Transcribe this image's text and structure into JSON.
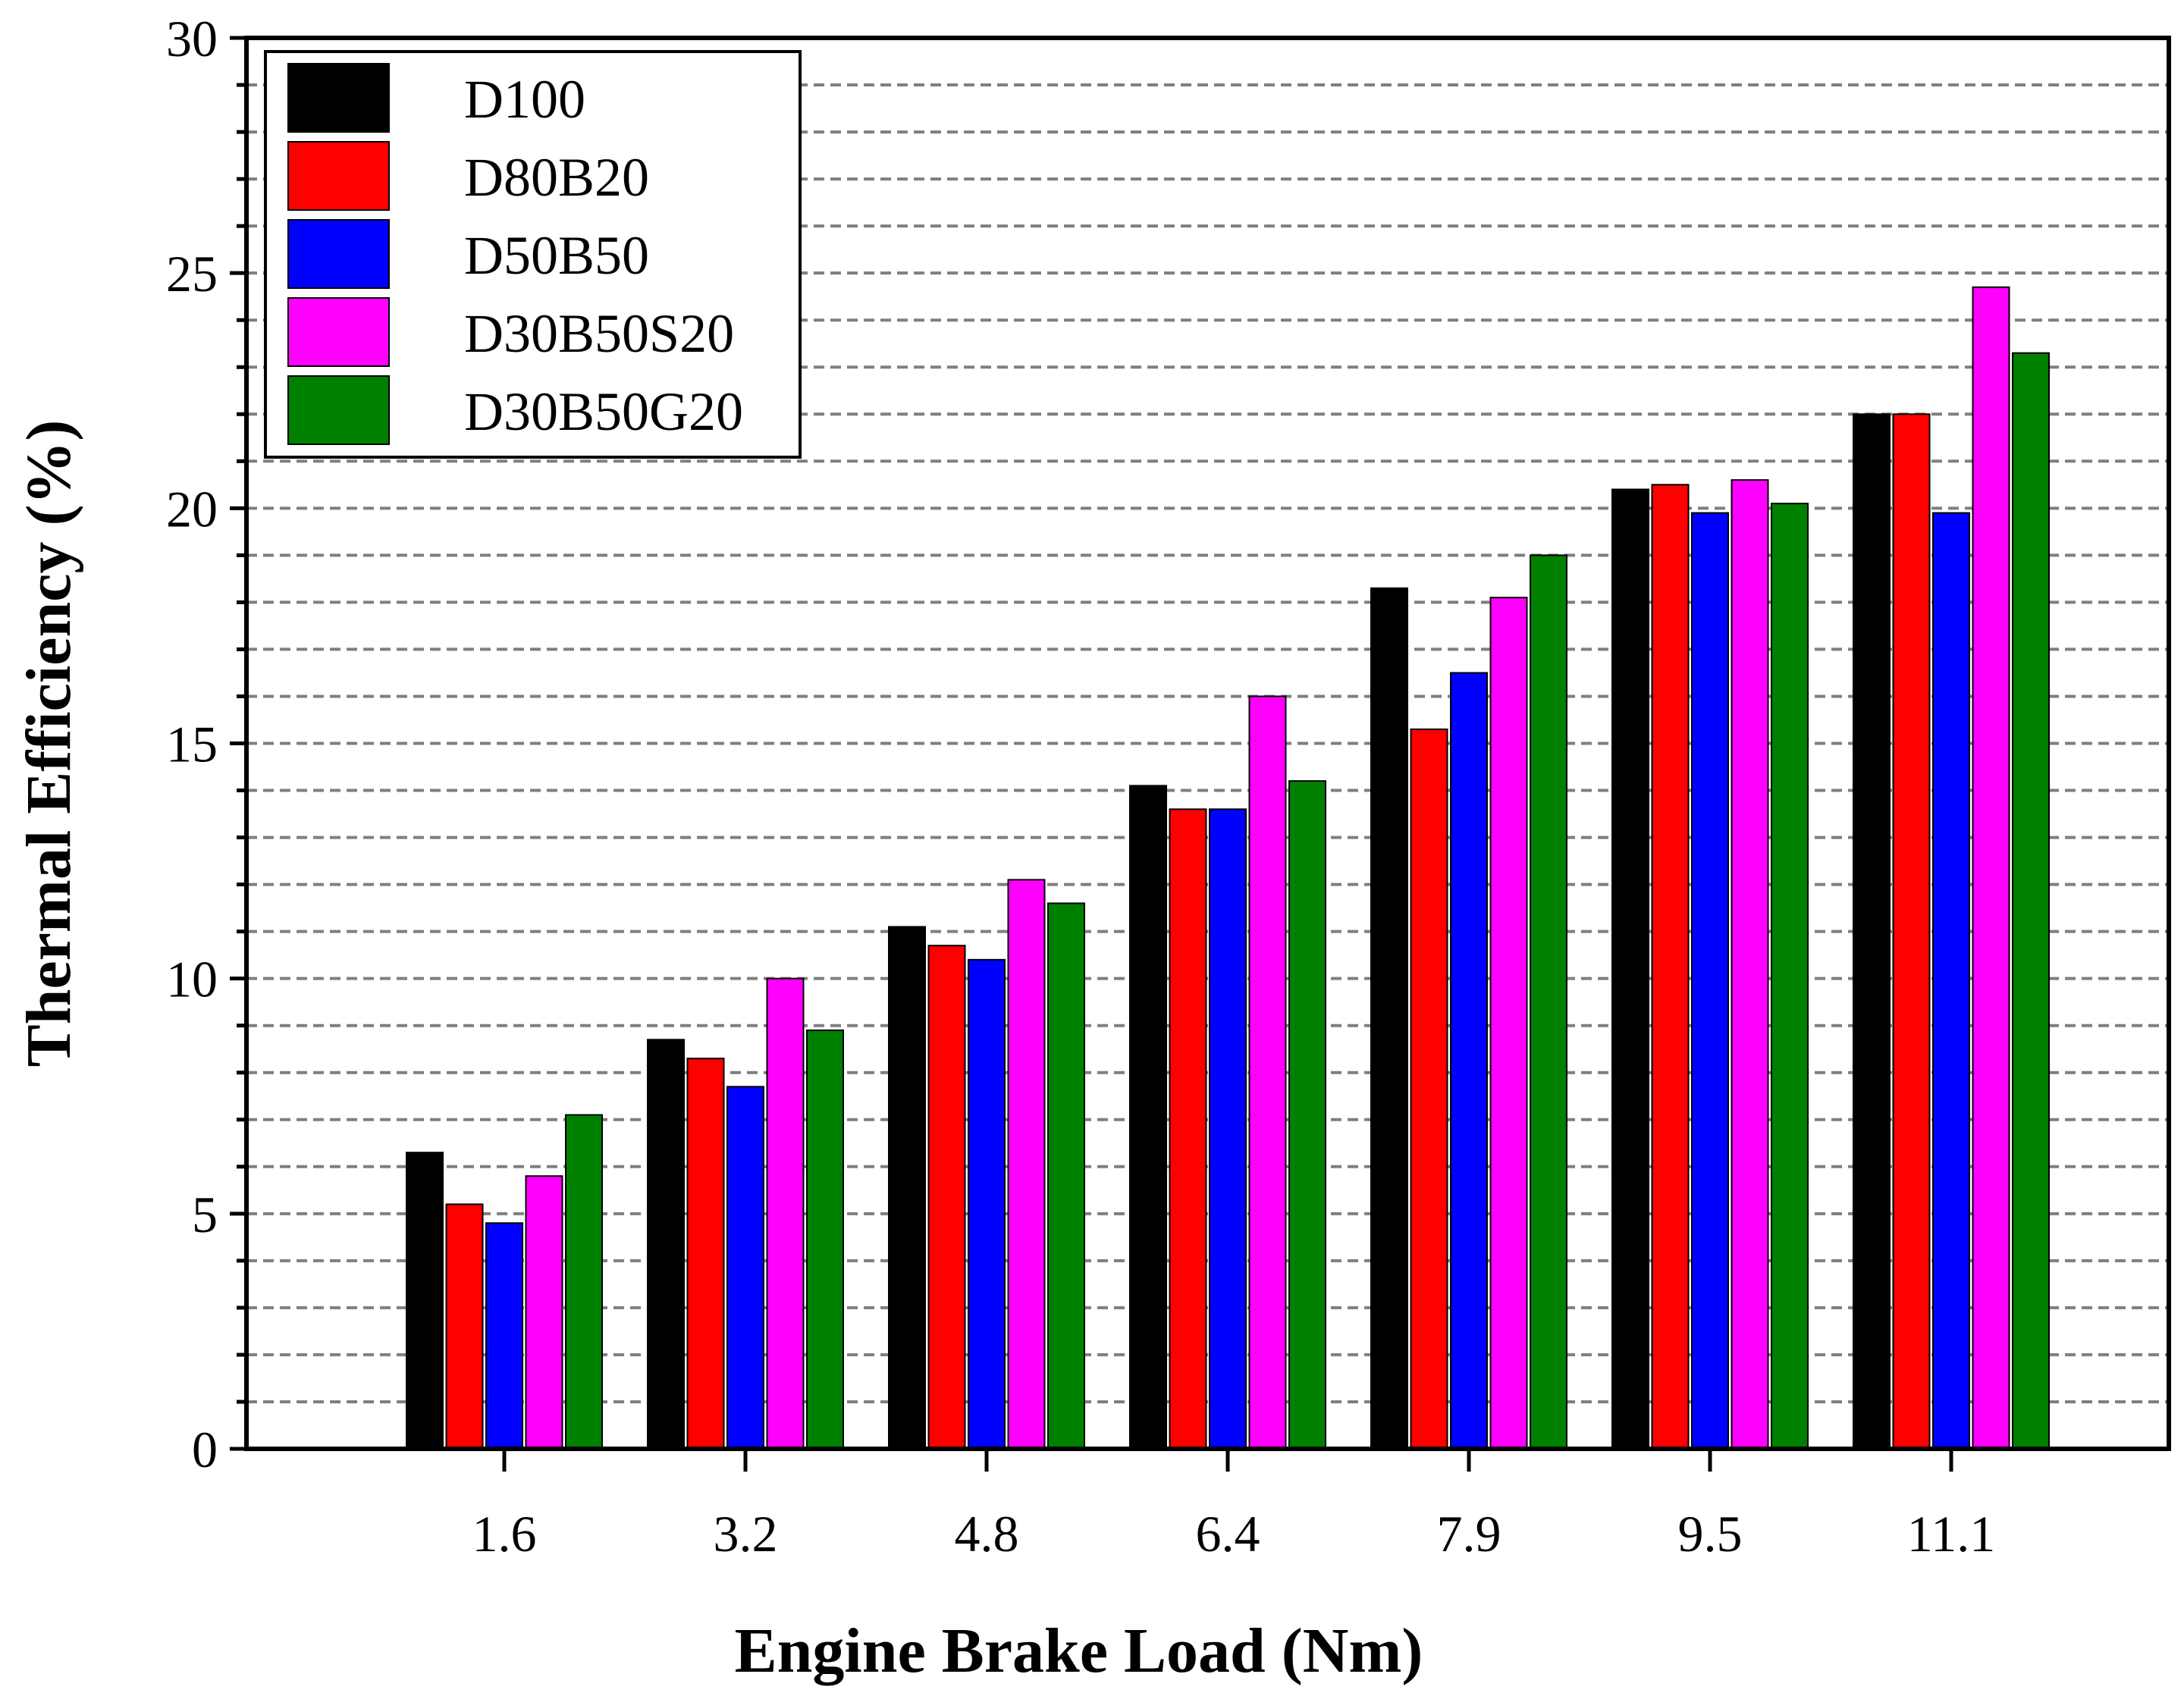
{
  "chart_data": {
    "type": "bar",
    "xlabel": "Engine Brake Load (Nm)",
    "ylabel": "Thermal Efficiency (%)",
    "categories": [
      "1.6",
      "3.2",
      "4.8",
      "6.4",
      "7.9",
      "9.5",
      "11.1"
    ],
    "ylim": [
      0,
      30
    ],
    "yticks": [
      0,
      5,
      10,
      15,
      20,
      25,
      30
    ],
    "ytick_labels": [
      "0",
      "5",
      "10",
      "15",
      "20",
      "25",
      "30"
    ],
    "grid": "horizontal dashed every 1",
    "legend_position": "top-left",
    "series": [
      {
        "name": "D100",
        "color": "#000000",
        "values": [
          6.3,
          8.7,
          11.1,
          14.1,
          18.3,
          20.4,
          22.0
        ]
      },
      {
        "name": "D80B20",
        "color": "#ff0000",
        "values": [
          5.2,
          8.3,
          10.7,
          13.6,
          15.3,
          20.5,
          22.0
        ]
      },
      {
        "name": "D50B50",
        "color": "#0000ff",
        "values": [
          4.8,
          7.7,
          10.4,
          13.6,
          16.5,
          19.9,
          19.9
        ]
      },
      {
        "name": "D30B50S20",
        "color": "#ff00ff",
        "values": [
          5.8,
          10.0,
          12.1,
          16.0,
          18.1,
          20.6,
          24.7
        ]
      },
      {
        "name": "D30B50G20",
        "color": "#008000",
        "values": [
          7.1,
          8.9,
          11.6,
          14.2,
          19.0,
          20.1,
          23.3
        ]
      }
    ]
  }
}
